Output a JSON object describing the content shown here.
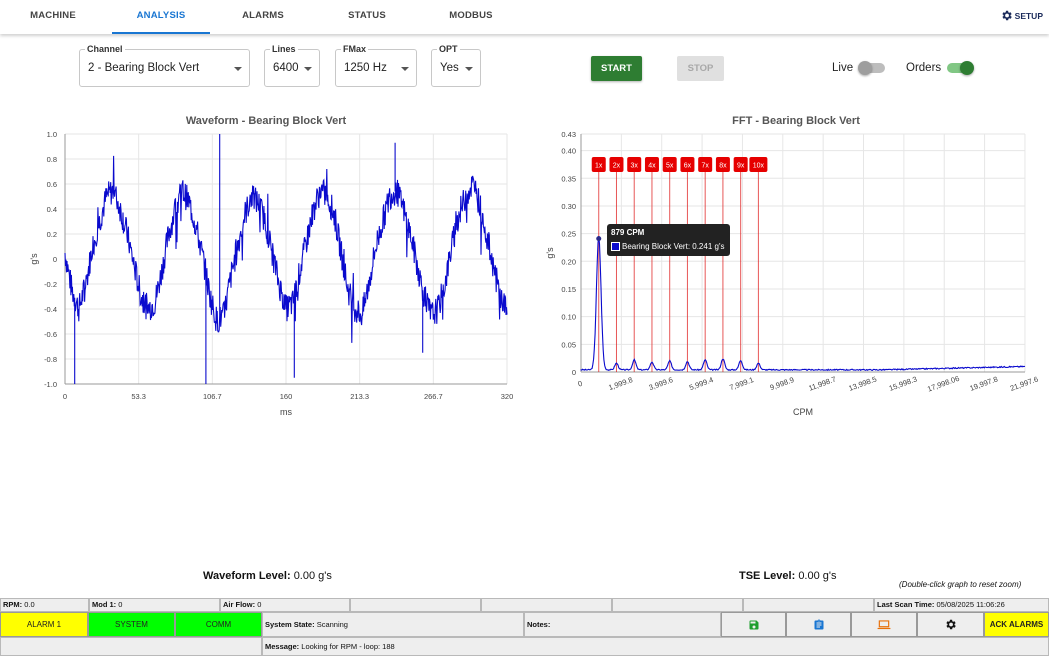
{
  "nav": {
    "tabs": [
      {
        "label": "MACHINE"
      },
      {
        "label": "ANALYSIS"
      },
      {
        "label": "ALARMS"
      },
      {
        "label": "STATUS"
      },
      {
        "label": "MODBUS"
      }
    ],
    "active_tab": "ANALYSIS",
    "setup_label": "SETUP",
    "setup_icon": "gear-icon"
  },
  "controls": {
    "channel": {
      "label": "Channel",
      "value": "2 - Bearing Block Vert"
    },
    "lines": {
      "label": "Lines",
      "value": "6400"
    },
    "fmax": {
      "label": "FMax",
      "value": "1250 Hz"
    },
    "opt": {
      "label": "OPT",
      "value": "Yes"
    },
    "start_label": "START",
    "stop_label": "STOP",
    "live_label": "Live",
    "live_on": false,
    "orders_label": "Orders",
    "orders_on": true
  },
  "colors": {
    "accent": "#1976d2",
    "start_bg": "#2e7d32",
    "series": "#0a0acd",
    "order_line": "#e02020",
    "alarm_yellow": "#ffff00",
    "ok_green": "#00ff00"
  },
  "chart_data": [
    {
      "type": "line",
      "title": "Waveform - Bearing Block Vert",
      "xlabel": "ms",
      "ylabel": "g's",
      "xlim": [
        0,
        320
      ],
      "ylim": [
        -1.0,
        1.0
      ],
      "x_ticks": [
        "0",
        "53.3",
        "106.7",
        "160",
        "213.3",
        "266.7",
        "320"
      ],
      "y_ticks": [
        "1.0",
        "0.8",
        "0.6",
        "0.4",
        "0.2",
        "0",
        "-0.2",
        "-0.4",
        "-0.6",
        "-0.8",
        "-1.0"
      ],
      "grid": true,
      "series": [
        {
          "values_description_free": true,
          "x": [
            0,
            5,
            10,
            15,
            20,
            25,
            30,
            35,
            40,
            45,
            50,
            55,
            60,
            65,
            70,
            75,
            80,
            85,
            90,
            95,
            100,
            105,
            110,
            115,
            120,
            125,
            130,
            135,
            140,
            145,
            150,
            155,
            160,
            165,
            170,
            175,
            180,
            185,
            190,
            195,
            200,
            205,
            210,
            215,
            220,
            225,
            230,
            235,
            240,
            245,
            250,
            255,
            260,
            265,
            270,
            275,
            280,
            285,
            290,
            295,
            300,
            305,
            310,
            315,
            320
          ],
          "values": [
            0.05,
            -0.25,
            -0.4,
            -0.2,
            0.1,
            0.3,
            0.5,
            0.55,
            0.4,
            0.2,
            -0.05,
            -0.3,
            -0.4,
            -0.35,
            -0.1,
            0.2,
            0.4,
            0.55,
            0.45,
            0.25,
            0.0,
            -0.3,
            -0.5,
            -0.45,
            -0.15,
            0.1,
            0.35,
            0.5,
            0.45,
            0.3,
            0.05,
            -0.2,
            -0.4,
            -0.35,
            -0.1,
            0.15,
            0.4,
            0.55,
            0.5,
            0.35,
            0.05,
            -0.25,
            -0.4,
            -0.45,
            -0.2,
            0.1,
            0.3,
            0.5,
            0.55,
            0.4,
            0.2,
            -0.05,
            -0.3,
            -0.45,
            -0.4,
            -0.2,
            0.1,
            0.35,
            0.5,
            0.6,
            0.45,
            0.2,
            -0.05,
            -0.3,
            -0.4
          ]
        }
      ]
    },
    {
      "type": "line",
      "title": "FFT - Bearing Block Vert",
      "xlabel": "CPM",
      "ylabel": "g's",
      "xlim": [
        0,
        22000
      ],
      "ylim": [
        0,
        0.43
      ],
      "x_ticks": [
        "0",
        "1,999.8",
        "3,999.6",
        "5,999.4",
        "7,999.1",
        "9,998.9",
        "11,998.7",
        "13,998.5",
        "15,998.3",
        "17,998.06",
        "19,997.8",
        "21,997.6"
      ],
      "y_ticks": [
        "0.43",
        "0.40",
        "0.35",
        "0.30",
        "0.25",
        "0.20",
        "0.15",
        "0.10",
        "0.05",
        "0"
      ],
      "grid": true,
      "order_markers": [
        "1x",
        "2x",
        "3x",
        "4x",
        "5x",
        "6x",
        "7x",
        "8x",
        "9x",
        "10x"
      ],
      "order_base_cpm": 879,
      "series": [
        {
          "name": "Bearing Block Vert",
          "peaks_cpm": [
            879,
            1758,
            2637,
            3516,
            4395,
            5274,
            6153,
            7032,
            7911,
            8790
          ],
          "peaks_g": [
            0.241,
            0.012,
            0.018,
            0.014,
            0.016,
            0.015,
            0.018,
            0.02,
            0.017,
            0.012
          ],
          "baseline_g": 0.003
        }
      ],
      "tooltip": {
        "title": "879 CPM",
        "text": "Bearing Block Vert: 0.241 g's"
      }
    }
  ],
  "levels": {
    "waveform_label": "Waveform Level:",
    "waveform_value": "0.00 g's",
    "tse_label": "TSE Level:",
    "tse_value": "0.00 g's",
    "hint": "(Double-click graph to reset zoom)"
  },
  "statusbar": {
    "rpm_label": "RPM:",
    "rpm_value": "0.0",
    "mod_label": "Mod 1:",
    "mod_value": "0",
    "airflow_label": "Air Flow:",
    "airflow_value": "0",
    "last_scan_label": "Last Scan Time:",
    "last_scan_value": "05/08/2025 11:06:26",
    "alarm1": "ALARM 1",
    "system": "SYSTEM",
    "comm": "COMM",
    "state_label": "System State:",
    "state_value": "Scanning",
    "notes_label": "Notes:",
    "ack_label": "ACK ALARMS",
    "message_label": "Message:",
    "message_value": "Looking for RPM - loop: 188",
    "icons": [
      "save-icon",
      "clipboard-icon",
      "laptop-icon",
      "gear-icon"
    ]
  }
}
